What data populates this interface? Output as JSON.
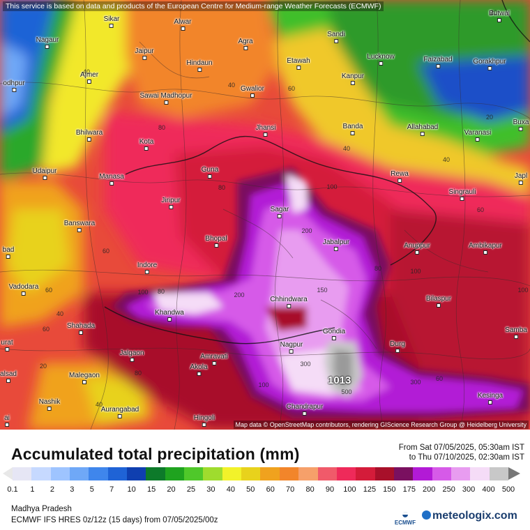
{
  "map": {
    "disclaimer": "This service is based on data and products of the European Centre for Medium-range Weather Forecasts (ECMWF)",
    "credit": "Map data © OpenStreetMap contributors, rendering GIScience Research Group @ Heidelberg University",
    "max_value_label": "1013",
    "cities": [
      {
        "name": "Sikar"
      },
      {
        "name": "Alwar"
      },
      {
        "name": "Sandi"
      },
      {
        "name": "Butwal"
      },
      {
        "name": "Nagaur"
      },
      {
        "name": "Jaipur"
      },
      {
        "name": "Agra"
      },
      {
        "name": "Etawah"
      },
      {
        "name": "Lucknow"
      },
      {
        "name": "Faizabad"
      },
      {
        "name": "Gorakhpur"
      },
      {
        "name": "Ajmer"
      },
      {
        "name": "Hindaun"
      },
      {
        "name": "Kanpur"
      },
      {
        "name": "odhpur"
      },
      {
        "name": "Sawai Madhopur"
      },
      {
        "name": "Gwalior"
      },
      {
        "name": "Jhansi"
      },
      {
        "name": "Banda"
      },
      {
        "name": "Allahabad"
      },
      {
        "name": "Varanasi"
      },
      {
        "name": "Buxa"
      },
      {
        "name": "Bhilwara"
      },
      {
        "name": "Kota"
      },
      {
        "name": "Udaipur"
      },
      {
        "name": "Guna"
      },
      {
        "name": "Manasa"
      },
      {
        "name": "Rewa"
      },
      {
        "name": "Jiripur"
      },
      {
        "name": "Singrauli"
      },
      {
        "name": "Japl"
      },
      {
        "name": "Sagar"
      },
      {
        "name": "Banswara"
      },
      {
        "name": "Bhopal"
      },
      {
        "name": "Jabalpur"
      },
      {
        "name": "Anuppur"
      },
      {
        "name": "Ambikapur"
      },
      {
        "name": "bad"
      },
      {
        "name": "Indore"
      },
      {
        "name": "Vadodara"
      },
      {
        "name": "Chhindwara"
      },
      {
        "name": "Bilaspur"
      },
      {
        "name": "Khandwa"
      },
      {
        "name": "Shahada"
      },
      {
        "name": "Gondia"
      },
      {
        "name": "Samba"
      },
      {
        "name": "urat"
      },
      {
        "name": "Nagpur"
      },
      {
        "name": "Durg"
      },
      {
        "name": "Jalgaon"
      },
      {
        "name": "Amravati"
      },
      {
        "name": "Akola"
      },
      {
        "name": "alsad"
      },
      {
        "name": "Malegaon"
      },
      {
        "name": "Kesinga"
      },
      {
        "name": "Nashik"
      },
      {
        "name": "Chandrapur"
      },
      {
        "name": "Aurangabad"
      },
      {
        "name": "Hingoli"
      },
      {
        "name": "ai"
      }
    ],
    "contour_values": [
      "20",
      "40",
      "40",
      "60",
      "80",
      "100",
      "60",
      "80",
      "40",
      "20",
      "40",
      "60",
      "100",
      "80",
      "40",
      "60",
      "80",
      "100",
      "200",
      "200",
      "300",
      "300",
      "500",
      "100",
      "150",
      "60",
      "80",
      "100",
      "60",
      "40",
      "20"
    ]
  },
  "legend": {
    "title": "Accumulated total precipitation (mm)",
    "period_from": "From Sat 07/05/2025, 05:30am IST",
    "period_to": "to Thu 07/10/2025, 02:30am IST",
    "ticks": [
      "0.1",
      "1",
      "2",
      "3",
      "5",
      "7",
      "10",
      "15",
      "20",
      "25",
      "30",
      "40",
      "50",
      "60",
      "70",
      "80",
      "90",
      "100",
      "125",
      "150",
      "175",
      "200",
      "250",
      "300",
      "400",
      "500"
    ],
    "colors": [
      "#e6e6f5",
      "#c6d9ff",
      "#9ec4ff",
      "#6fa8f7",
      "#3f86ec",
      "#1f63d6",
      "#0f3fb0",
      "#0d7a2a",
      "#1fa31f",
      "#4fc82a",
      "#9fdc2e",
      "#f2f22a",
      "#e8d21c",
      "#f0a21e",
      "#f2852a",
      "#f6a06a",
      "#f05a6a",
      "#ef2a5a",
      "#d41c3a",
      "#a8102a",
      "#7a1060",
      "#b21ad6",
      "#d65ae8",
      "#e89cf0",
      "#f5dcf7",
      "#c8c8c8"
    ],
    "region": "Madhya Pradesh",
    "model": "ECMWF IFS HRES 0z/12z (15 days) from  07/05/2025/00z"
  },
  "branding": {
    "ecmwf": "ECMWF",
    "meteologix": "meteologix.com"
  }
}
